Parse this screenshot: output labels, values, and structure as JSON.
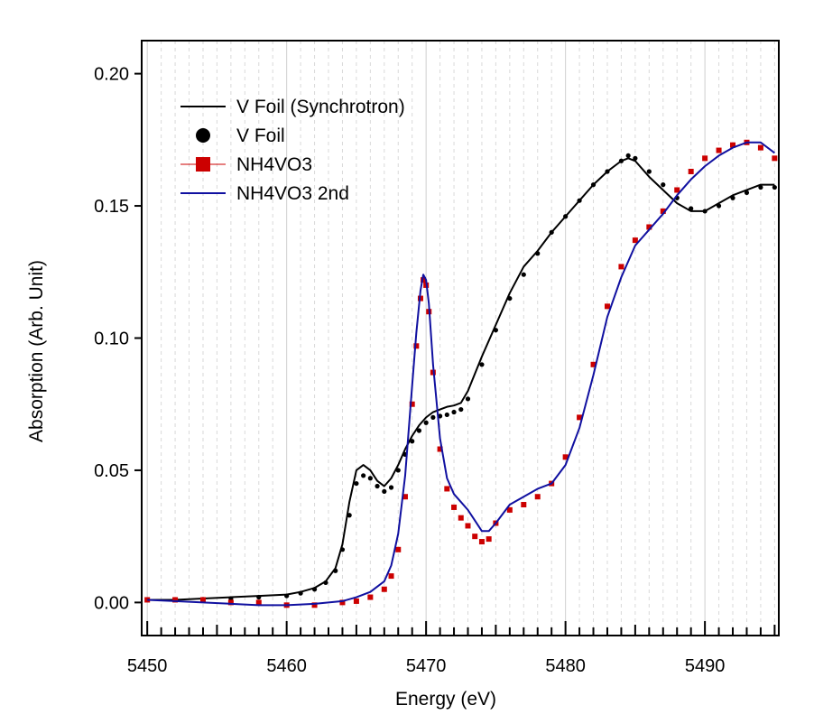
{
  "chart_data": {
    "type": "line",
    "xlabel": "Energy (eV)",
    "ylabel": "Absorption (Arb. Unit)",
    "xlim": [
      5449.6,
      5495.3
    ],
    "ylim": [
      -0.0125,
      0.2125
    ],
    "xticks": [
      5450,
      5460,
      5470,
      5480,
      5490
    ],
    "xtick_labels": [
      "5450",
      "5460",
      "5470",
      "5480",
      "5490"
    ],
    "yticks": [
      0.0,
      0.05,
      0.1,
      0.15,
      0.2
    ],
    "ytick_labels": [
      "0.00",
      "0.05",
      "0.10",
      "0.15",
      "0.20"
    ],
    "grid": "vertical dashed at every 1 eV, solid at every 10 eV",
    "legend_position": "top-left",
    "series": [
      {
        "name": "V Foil (Synchrotron)",
        "style": "line",
        "color": "#000000",
        "x": [
          5450,
          5452,
          5454,
          5456,
          5458,
          5460,
          5461,
          5462,
          5462.8,
          5463.5,
          5464,
          5464.5,
          5465,
          5465.5,
          5466,
          5466.5,
          5467,
          5467.5,
          5468,
          5468.5,
          5469,
          5469.5,
          5470,
          5470.5,
          5471,
          5471.5,
          5472,
          5472.5,
          5473,
          5474,
          5475,
          5476,
          5477,
          5478,
          5479,
          5480,
          5481,
          5482,
          5483,
          5484,
          5484.5,
          5485,
          5486,
          5487,
          5488,
          5489,
          5490,
          5491,
          5492,
          5493,
          5494,
          5495
        ],
        "y": [
          0.001,
          0.001,
          0.0015,
          0.002,
          0.0025,
          0.003,
          0.004,
          0.0055,
          0.008,
          0.013,
          0.022,
          0.038,
          0.05,
          0.052,
          0.05,
          0.046,
          0.044,
          0.047,
          0.052,
          0.058,
          0.063,
          0.067,
          0.07,
          0.072,
          0.073,
          0.074,
          0.0745,
          0.0755,
          0.08,
          0.093,
          0.105,
          0.117,
          0.127,
          0.133,
          0.14,
          0.146,
          0.152,
          0.158,
          0.163,
          0.167,
          0.168,
          0.167,
          0.161,
          0.156,
          0.151,
          0.148,
          0.148,
          0.151,
          0.154,
          0.156,
          0.158,
          0.158
        ]
      },
      {
        "name": "V Foil",
        "style": "markers",
        "marker": "circle",
        "color": "#000000",
        "x": [
          5450,
          5452,
          5454,
          5456,
          5458,
          5460,
          5461,
          5462,
          5462.8,
          5463.5,
          5464,
          5464.5,
          5465,
          5465.5,
          5466,
          5466.5,
          5467,
          5467.5,
          5468,
          5468.5,
          5469,
          5469.5,
          5470,
          5470.5,
          5471,
          5471.5,
          5472,
          5472.5,
          5473,
          5474,
          5475,
          5476,
          5477,
          5478,
          5479,
          5480,
          5481,
          5482,
          5483,
          5484,
          5484.5,
          5485,
          5486,
          5487,
          5488,
          5489,
          5490,
          5491,
          5492,
          5493,
          5494,
          5495
        ],
        "y": [
          0.001,
          0.001,
          0.0012,
          0.0015,
          0.002,
          0.0025,
          0.0035,
          0.005,
          0.0075,
          0.012,
          0.02,
          0.033,
          0.045,
          0.048,
          0.047,
          0.044,
          0.042,
          0.0435,
          0.05,
          0.056,
          0.061,
          0.065,
          0.068,
          0.07,
          0.0705,
          0.071,
          0.072,
          0.073,
          0.077,
          0.09,
          0.103,
          0.115,
          0.124,
          0.132,
          0.14,
          0.146,
          0.152,
          0.158,
          0.163,
          0.167,
          0.169,
          0.168,
          0.163,
          0.158,
          0.153,
          0.149,
          0.148,
          0.15,
          0.153,
          0.155,
          0.157,
          0.157
        ]
      },
      {
        "name": "NH4VO3",
        "style": "markers",
        "marker": "square",
        "color": "#cc0000",
        "x": [
          5450,
          5452,
          5454,
          5456,
          5458,
          5460,
          5462,
          5464,
          5465,
          5466,
          5467,
          5467.5,
          5468,
          5468.5,
          5469,
          5469.3,
          5469.6,
          5469.8,
          5470,
          5470.2,
          5470.5,
          5471,
          5471.5,
          5472,
          5472.5,
          5473,
          5473.5,
          5474,
          5474.5,
          5475,
          5476,
          5477,
          5478,
          5479,
          5480,
          5481,
          5482,
          5483,
          5484,
          5485,
          5486,
          5487,
          5488,
          5489,
          5490,
          5491,
          5492,
          5493,
          5494,
          5495
        ],
        "y": [
          0.001,
          0.001,
          0.001,
          0.0,
          0.0,
          -0.001,
          -0.001,
          0.0,
          0.0005,
          0.002,
          0.005,
          0.01,
          0.02,
          0.04,
          0.075,
          0.097,
          0.115,
          0.122,
          0.12,
          0.11,
          0.087,
          0.058,
          0.043,
          0.036,
          0.032,
          0.029,
          0.025,
          0.023,
          0.024,
          0.03,
          0.035,
          0.037,
          0.04,
          0.045,
          0.055,
          0.07,
          0.09,
          0.112,
          0.127,
          0.137,
          0.142,
          0.148,
          0.156,
          0.163,
          0.168,
          0.171,
          0.173,
          0.174,
          0.172,
          0.168
        ]
      },
      {
        "name": "NH4VO3 2nd",
        "style": "line",
        "color": "#1010a0",
        "x": [
          5450,
          5452,
          5454,
          5456,
          5458,
          5460,
          5462,
          5464,
          5465,
          5466,
          5467,
          5467.5,
          5468,
          5468.5,
          5469,
          5469.3,
          5469.6,
          5469.8,
          5470,
          5470.2,
          5470.5,
          5471,
          5471.5,
          5472,
          5472.5,
          5473,
          5473.5,
          5474,
          5474.5,
          5475,
          5476,
          5477,
          5478,
          5479,
          5480,
          5481,
          5482,
          5483,
          5484,
          5485,
          5486,
          5487,
          5488,
          5489,
          5490,
          5491,
          5492,
          5493,
          5494,
          5495
        ],
        "y": [
          0.001,
          0.0005,
          0.0,
          -0.0005,
          -0.001,
          -0.001,
          -0.0005,
          0.0005,
          0.002,
          0.004,
          0.008,
          0.014,
          0.026,
          0.048,
          0.082,
          0.102,
          0.118,
          0.124,
          0.122,
          0.113,
          0.09,
          0.062,
          0.047,
          0.041,
          0.038,
          0.035,
          0.031,
          0.027,
          0.027,
          0.03,
          0.037,
          0.04,
          0.043,
          0.045,
          0.052,
          0.066,
          0.086,
          0.108,
          0.123,
          0.135,
          0.141,
          0.147,
          0.154,
          0.16,
          0.165,
          0.169,
          0.172,
          0.174,
          0.174,
          0.17
        ]
      }
    ]
  }
}
